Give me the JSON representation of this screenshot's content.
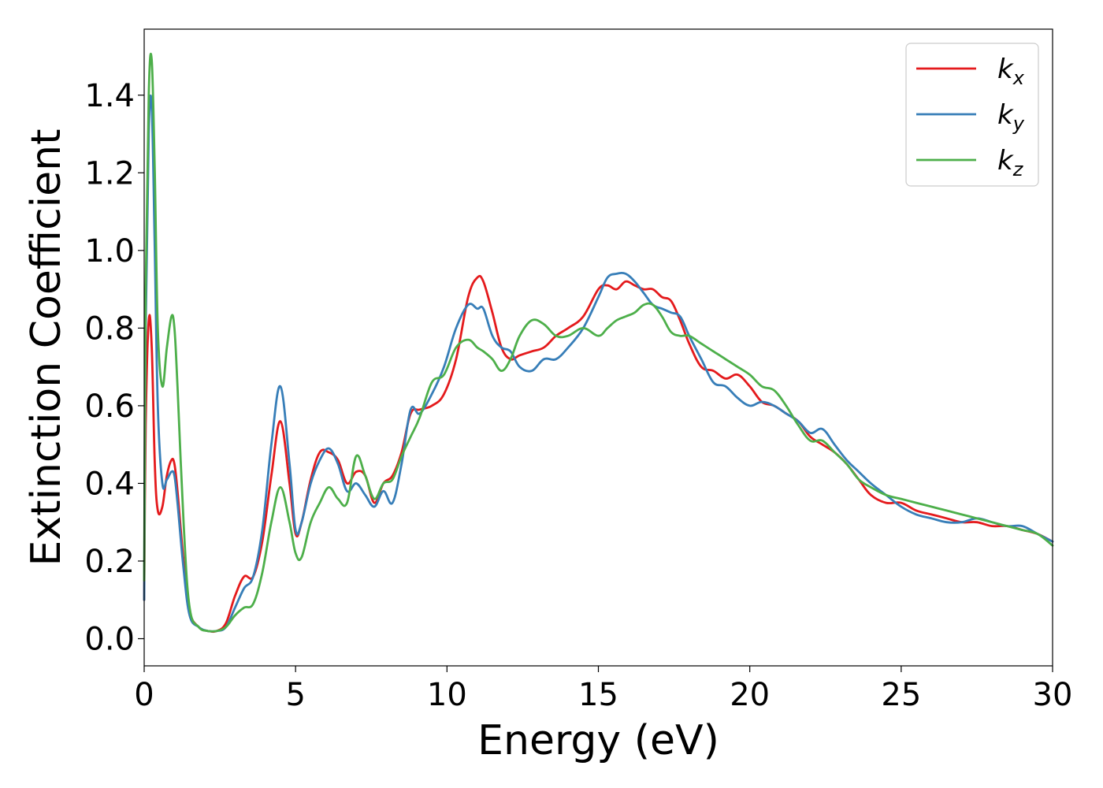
{
  "chart_data": {
    "type": "line",
    "xlabel": "Energy (eV)",
    "ylabel": "Extinction Coefficient",
    "xlim": [
      0,
      30
    ],
    "ylim": [
      -0.07,
      1.57
    ],
    "xticks": [
      0,
      5,
      10,
      15,
      20,
      25,
      30
    ],
    "yticks": [
      0.0,
      0.2,
      0.4,
      0.6,
      0.8,
      1.0,
      1.2,
      1.4
    ],
    "xtick_labels": [
      "0",
      "5",
      "10",
      "15",
      "20",
      "25",
      "30"
    ],
    "ytick_labels": [
      "0.0",
      "0.2",
      "0.4",
      "0.6",
      "0.8",
      "1.0",
      "1.2",
      "1.4"
    ],
    "grid": false,
    "legend_position": "top-right",
    "series": [
      {
        "name": "k",
        "subscript": "x",
        "color": "#e41a1c",
        "x": [
          0,
          0.05,
          0.15,
          0.25,
          0.35,
          0.45,
          0.6,
          0.75,
          0.9,
          1.0,
          1.1,
          1.3,
          1.5,
          1.8,
          2.1,
          2.4,
          2.7,
          3.0,
          3.3,
          3.6,
          3.9,
          4.2,
          4.5,
          4.8,
          5.0,
          5.2,
          5.5,
          5.8,
          6.1,
          6.4,
          6.7,
          7.0,
          7.3,
          7.6,
          7.9,
          8.2,
          8.5,
          8.8,
          9.1,
          9.5,
          9.9,
          10.3,
          10.7,
          11.0,
          11.2,
          11.5,
          11.8,
          12.1,
          12.4,
          12.8,
          13.2,
          13.6,
          14.0,
          14.5,
          15.0,
          15.3,
          15.6,
          15.9,
          16.2,
          16.5,
          16.8,
          17.1,
          17.4,
          17.7,
          18.0,
          18.4,
          18.8,
          19.2,
          19.6,
          20.0,
          20.4,
          20.8,
          21.2,
          21.6,
          22.0,
          22.4,
          22.8,
          23.2,
          23.6,
          24.0,
          24.5,
          25.0,
          25.5,
          26.0,
          26.5,
          27.0,
          27.5,
          28.0,
          28.5,
          29.0,
          29.5,
          30.0
        ],
        "y": [
          0.1,
          0.55,
          0.82,
          0.75,
          0.45,
          0.33,
          0.34,
          0.42,
          0.46,
          0.45,
          0.38,
          0.2,
          0.07,
          0.03,
          0.02,
          0.02,
          0.04,
          0.11,
          0.16,
          0.16,
          0.25,
          0.42,
          0.56,
          0.4,
          0.27,
          0.3,
          0.41,
          0.48,
          0.48,
          0.46,
          0.4,
          0.43,
          0.42,
          0.35,
          0.4,
          0.42,
          0.48,
          0.58,
          0.59,
          0.6,
          0.63,
          0.72,
          0.88,
          0.93,
          0.92,
          0.84,
          0.75,
          0.72,
          0.73,
          0.74,
          0.75,
          0.78,
          0.8,
          0.83,
          0.9,
          0.91,
          0.9,
          0.92,
          0.91,
          0.9,
          0.9,
          0.88,
          0.87,
          0.82,
          0.76,
          0.7,
          0.69,
          0.67,
          0.68,
          0.65,
          0.61,
          0.6,
          0.58,
          0.56,
          0.52,
          0.5,
          0.48,
          0.45,
          0.41,
          0.37,
          0.35,
          0.35,
          0.33,
          0.32,
          0.31,
          0.3,
          0.3,
          0.29,
          0.29,
          0.28,
          0.27,
          0.25
        ]
      },
      {
        "name": "k",
        "subscript": "y",
        "color": "#377eb8",
        "x": [
          0,
          0.05,
          0.15,
          0.25,
          0.35,
          0.45,
          0.6,
          0.75,
          0.9,
          1.0,
          1.1,
          1.3,
          1.5,
          1.8,
          2.1,
          2.4,
          2.7,
          3.0,
          3.3,
          3.6,
          3.9,
          4.2,
          4.5,
          4.8,
          5.0,
          5.2,
          5.5,
          5.8,
          6.1,
          6.4,
          6.7,
          7.0,
          7.3,
          7.6,
          7.9,
          8.2,
          8.5,
          8.8,
          9.1,
          9.5,
          9.9,
          10.3,
          10.7,
          11.0,
          11.2,
          11.5,
          11.8,
          12.1,
          12.4,
          12.8,
          13.2,
          13.6,
          14.0,
          14.5,
          15.0,
          15.3,
          15.6,
          15.9,
          16.2,
          16.5,
          16.8,
          17.1,
          17.4,
          17.7,
          18.0,
          18.4,
          18.8,
          19.2,
          19.6,
          20.0,
          20.4,
          20.8,
          21.2,
          21.6,
          22.0,
          22.4,
          22.8,
          23.2,
          23.6,
          24.0,
          24.5,
          25.0,
          25.5,
          26.0,
          26.5,
          27.0,
          27.5,
          28.0,
          28.5,
          29.0,
          29.5,
          30.0
        ],
        "y": [
          0.1,
          0.8,
          1.3,
          1.37,
          1.0,
          0.6,
          0.4,
          0.41,
          0.43,
          0.42,
          0.35,
          0.18,
          0.06,
          0.03,
          0.02,
          0.02,
          0.03,
          0.08,
          0.13,
          0.16,
          0.28,
          0.5,
          0.65,
          0.45,
          0.28,
          0.3,
          0.4,
          0.46,
          0.49,
          0.45,
          0.38,
          0.4,
          0.37,
          0.34,
          0.38,
          0.35,
          0.45,
          0.59,
          0.58,
          0.63,
          0.7,
          0.8,
          0.86,
          0.85,
          0.85,
          0.78,
          0.75,
          0.74,
          0.7,
          0.69,
          0.72,
          0.72,
          0.75,
          0.8,
          0.88,
          0.93,
          0.94,
          0.94,
          0.92,
          0.89,
          0.86,
          0.85,
          0.84,
          0.83,
          0.78,
          0.72,
          0.66,
          0.65,
          0.62,
          0.6,
          0.61,
          0.6,
          0.58,
          0.56,
          0.53,
          0.54,
          0.5,
          0.46,
          0.43,
          0.4,
          0.37,
          0.34,
          0.32,
          0.31,
          0.3,
          0.3,
          0.31,
          0.3,
          0.29,
          0.29,
          0.27,
          0.25
        ]
      },
      {
        "name": "k",
        "subscript": "z",
        "color": "#4daf4a",
        "x": [
          0,
          0.05,
          0.15,
          0.25,
          0.35,
          0.45,
          0.6,
          0.75,
          0.9,
          1.0,
          1.1,
          1.3,
          1.5,
          1.8,
          2.1,
          2.4,
          2.7,
          3.0,
          3.3,
          3.6,
          3.9,
          4.2,
          4.5,
          4.8,
          5.0,
          5.2,
          5.5,
          5.8,
          6.1,
          6.4,
          6.7,
          7.0,
          7.3,
          7.6,
          7.9,
          8.2,
          8.5,
          8.8,
          9.1,
          9.5,
          9.9,
          10.3,
          10.7,
          11.0,
          11.2,
          11.5,
          11.8,
          12.1,
          12.4,
          12.8,
          13.2,
          13.6,
          14.0,
          14.5,
          15.0,
          15.3,
          15.6,
          15.9,
          16.2,
          16.5,
          16.8,
          17.1,
          17.4,
          17.7,
          18.0,
          18.4,
          18.8,
          19.2,
          19.6,
          20.0,
          20.4,
          20.8,
          21.2,
          21.6,
          22.0,
          22.4,
          22.8,
          23.2,
          23.6,
          24.0,
          24.5,
          25.0,
          25.5,
          26.0,
          26.5,
          27.0,
          27.5,
          28.0,
          28.5,
          29.0,
          29.5,
          30.0
        ],
        "y": [
          0.15,
          0.9,
          1.4,
          1.49,
          1.2,
          0.8,
          0.65,
          0.75,
          0.83,
          0.8,
          0.65,
          0.3,
          0.08,
          0.03,
          0.02,
          0.02,
          0.03,
          0.06,
          0.08,
          0.09,
          0.17,
          0.3,
          0.39,
          0.3,
          0.22,
          0.21,
          0.3,
          0.35,
          0.39,
          0.36,
          0.35,
          0.47,
          0.42,
          0.36,
          0.4,
          0.41,
          0.47,
          0.52,
          0.57,
          0.66,
          0.68,
          0.75,
          0.77,
          0.75,
          0.74,
          0.72,
          0.69,
          0.72,
          0.78,
          0.82,
          0.81,
          0.78,
          0.78,
          0.8,
          0.78,
          0.8,
          0.82,
          0.83,
          0.84,
          0.86,
          0.86,
          0.83,
          0.79,
          0.78,
          0.78,
          0.76,
          0.74,
          0.72,
          0.7,
          0.68,
          0.65,
          0.64,
          0.6,
          0.55,
          0.51,
          0.51,
          0.48,
          0.45,
          0.41,
          0.39,
          0.37,
          0.36,
          0.35,
          0.34,
          0.33,
          0.32,
          0.31,
          0.3,
          0.29,
          0.28,
          0.27,
          0.24
        ]
      }
    ]
  }
}
